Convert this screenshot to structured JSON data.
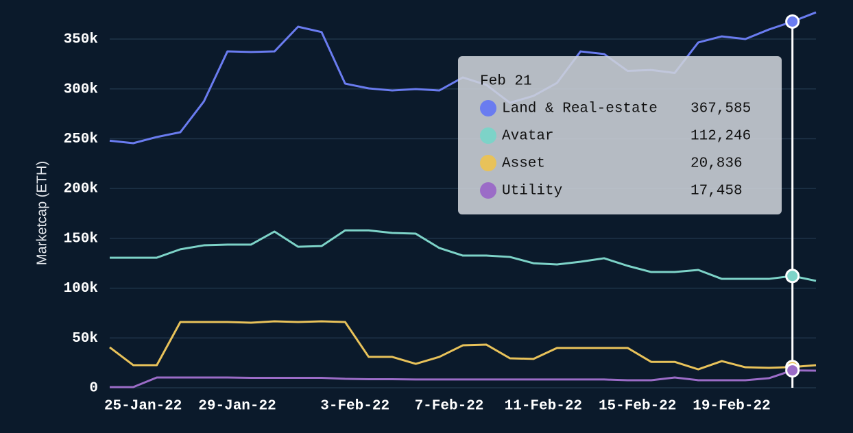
{
  "chart_data": {
    "type": "line",
    "y_label": "Marketcap (ETH)",
    "categories": [
      null,
      null,
      "25-Jan-22",
      null,
      null,
      null,
      "29-Jan-22",
      null,
      null,
      null,
      null,
      "3-Feb-22",
      null,
      null,
      null,
      "7-Feb-22",
      null,
      null,
      null,
      "11-Feb-22",
      null,
      null,
      null,
      "15-Feb-22",
      null,
      null,
      null,
      "19-Feb-22",
      null,
      null,
      null
    ],
    "series": [
      {
        "name": "Land & Real-estate",
        "color": "#6a7cf0",
        "values": [
          248000,
          245500,
          251700,
          256500,
          287400,
          337600,
          337000,
          337600,
          362400,
          357000,
          305300,
          300500,
          298400,
          299800,
          298400,
          311500,
          304000,
          286000,
          293000,
          306000,
          337600,
          335000,
          318000,
          319000,
          316000,
          346600,
          352700,
          350000,
          359600,
          367585,
          376800
        ]
      },
      {
        "name": "Avatar",
        "color": "#7dd3c8",
        "values": [
          130600,
          130600,
          130600,
          139000,
          143000,
          143700,
          143700,
          156800,
          141600,
          142300,
          158000,
          158000,
          155400,
          154700,
          140300,
          132700,
          132700,
          131300,
          125000,
          123800,
          126500,
          130000,
          122400,
          116200,
          116200,
          118300,
          109300,
          109300,
          109300,
          112246,
          107300
        ]
      },
      {
        "name": "Asset",
        "color": "#e8c25a",
        "values": [
          40600,
          22700,
          22700,
          66000,
          66000,
          66000,
          65300,
          66700,
          66000,
          66700,
          66000,
          31000,
          31000,
          24000,
          31000,
          42600,
          43300,
          29600,
          29000,
          40000,
          40000,
          40000,
          40000,
          26000,
          26000,
          18500,
          26800,
          20600,
          20000,
          20836,
          22700
        ]
      },
      {
        "name": "Utility",
        "color": "#9b6cc7",
        "values": [
          700,
          700,
          10300,
          10300,
          10300,
          10300,
          10000,
          10000,
          10000,
          10000,
          9000,
          8600,
          8600,
          8300,
          8300,
          8300,
          8300,
          8300,
          8300,
          8300,
          8300,
          8300,
          7600,
          7600,
          10300,
          7600,
          7600,
          7600,
          9600,
          17458,
          17200
        ]
      }
    ],
    "ylim": [
      0,
      380000
    ],
    "yticks": [
      0,
      {
        "value": 50000,
        "label": "50k"
      },
      {
        "value": 100000,
        "label": "100k"
      },
      {
        "value": 150000,
        "label": "150k"
      },
      {
        "value": 200000,
        "label": "200k"
      },
      {
        "value": 250000,
        "label": "250k"
      },
      {
        "value": 300000,
        "label": "300k"
      },
      {
        "value": 350000,
        "label": "350k"
      }
    ],
    "grid": true,
    "tooltip": {
      "title": "Feb 21",
      "values": [
        {
          "value": 367585,
          "label": "367,585"
        },
        {
          "value": 112246,
          "label": "112,246"
        },
        {
          "value": 20836,
          "label": "20,836"
        },
        {
          "value": 17458,
          "label": "17,458"
        }
      ]
    }
  }
}
